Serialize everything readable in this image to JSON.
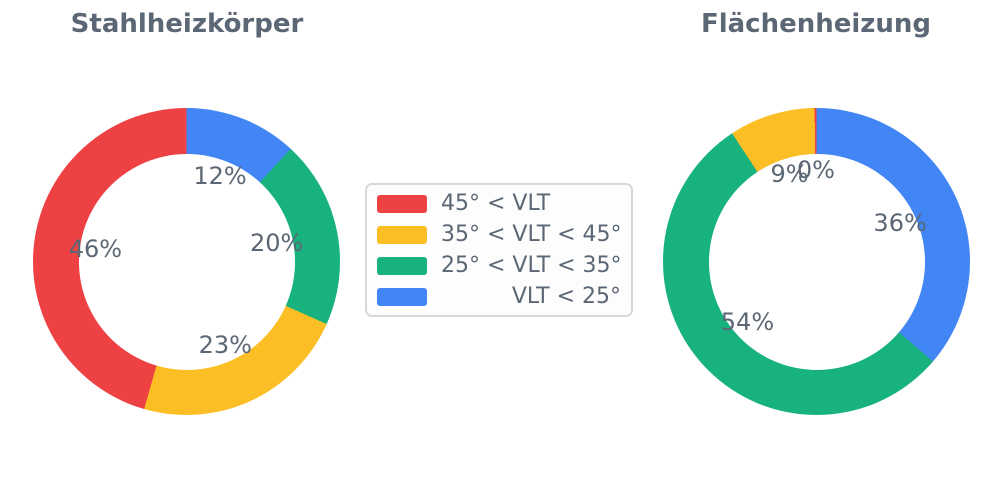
{
  "figure": {
    "background": "#ffffff",
    "text_color": "#5c6775"
  },
  "legend": {
    "position": "center-between-charts",
    "items": [
      {
        "label": "45° < VLT",
        "color": "#ee4144"
      },
      {
        "label": "35° < VLT < 45°",
        "color": "#fbbe24"
      },
      {
        "label": "25° < VLT < 35°",
        "color": "#17b27e"
      },
      {
        "label": "VLT < 25°",
        "color": "#4285f4"
      }
    ]
  },
  "chart_data": [
    {
      "type": "pie",
      "title": "Stahlheizkörper",
      "hole": 0.7,
      "rotation_deg": 90,
      "direction": "counterclockwise",
      "labels": [
        "45° < VLT",
        "35° < VLT < 45°",
        "25° < VLT < 35°",
        "VLT < 25°"
      ],
      "values": [
        46,
        23,
        20,
        12
      ],
      "value_labels": [
        "46%",
        "23%",
        "20%",
        "12%"
      ],
      "colors": [
        "#ee4144",
        "#fbbe24",
        "#17b27e",
        "#4285f4"
      ]
    },
    {
      "type": "pie",
      "title": "Flächenheizung",
      "hole": 0.7,
      "rotation_deg": 90,
      "direction": "counterclockwise",
      "labels": [
        "45° < VLT",
        "35° < VLT < 45°",
        "25° < VLT < 35°",
        "VLT < 25°"
      ],
      "values": [
        0,
        9,
        54,
        36
      ],
      "value_labels": [
        "0%",
        "9%",
        "54%",
        "36%"
      ],
      "colors": [
        "#ee4144",
        "#fbbe24",
        "#17b27e",
        "#4285f4"
      ]
    }
  ]
}
